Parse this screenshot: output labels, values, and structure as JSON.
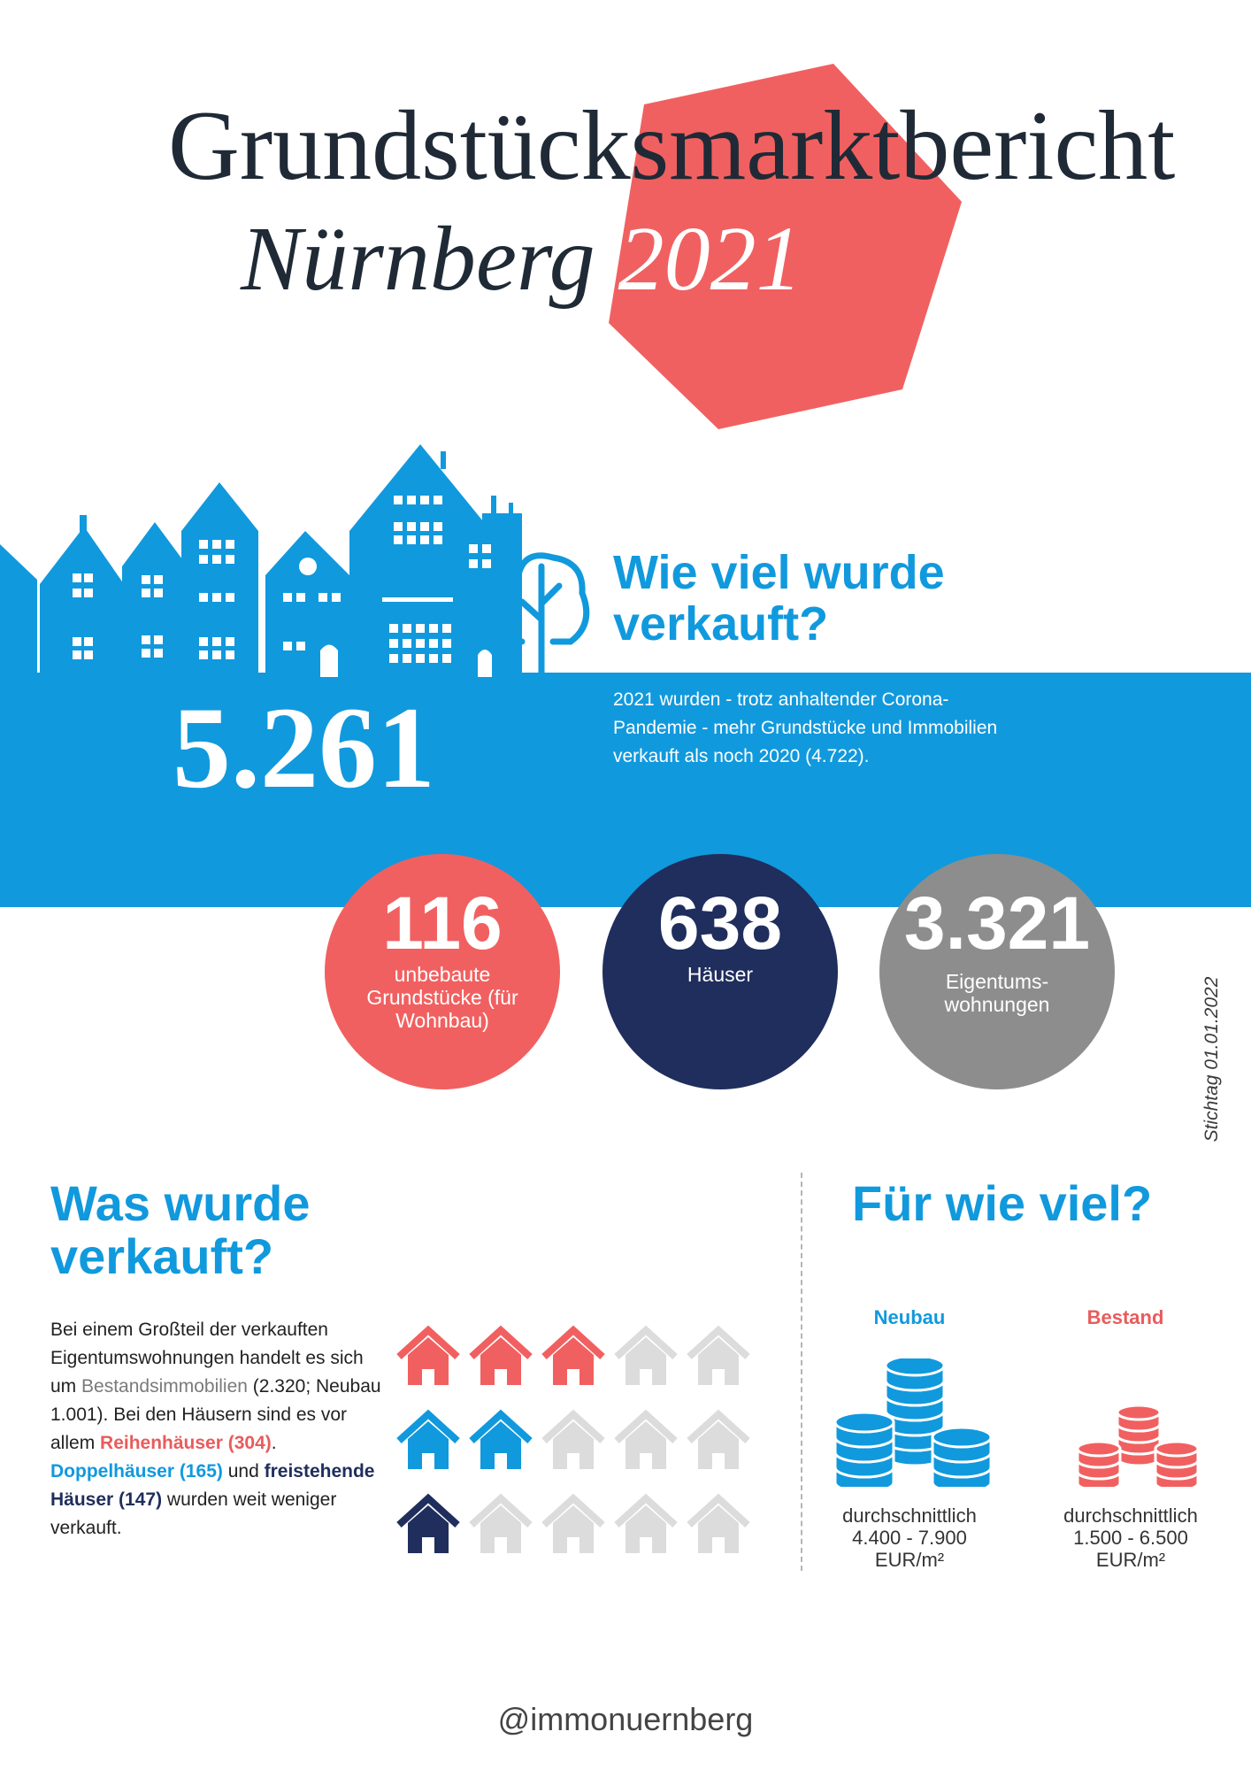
{
  "title": {
    "line1": "Grundstücksmarktbericht",
    "line2_city": "Nürnberg",
    "line2_year": "2021"
  },
  "colors": {
    "blue": "#1199dd",
    "coral": "#f16060",
    "navy": "#1f2e5c",
    "gray": "#8d8d8d",
    "light_gray": "#dcdcdc"
  },
  "sold": {
    "heading": "Wie viel wurde verkauft?",
    "total": "5.261",
    "text": "2021 wurden - trotz anhaltender Corona-Pandemie - mehr Grundstücke und Immobilien verkauft als noch 2020 (4.722)."
  },
  "circles": [
    {
      "number": "116",
      "label": "unbebaute Grundstücke (für Wohnbau)",
      "color": "#f16060"
    },
    {
      "number": "638",
      "label": "Häuser",
      "color": "#1f2e5c"
    },
    {
      "number": "3.321",
      "label": "Eigentums-wohnungen",
      "color": "#8d8d8d"
    }
  ],
  "stichtag": "Stichtag 01.01.2022",
  "what": {
    "heading": "Was wurde verkauft?",
    "p1": "Bei einem Großteil der verkauften Eigentumswohnungen handelt es sich um ",
    "bestand_word": "Bestandsimmobilien",
    "p2": " (2.320; Neubau 1.001). Bei den Häusern sind es vor allem ",
    "reihen": "Reihenhäuser (304)",
    "p3": ". ",
    "doppel": "Doppelhäuser (165)",
    "p4": " und ",
    "frei": "freistehende Häuser (147)",
    "p5": " wurden weit weniger verkauft.",
    "house_rows": [
      {
        "filled": 3,
        "total": 5,
        "icon": "house-icon",
        "color": "#f16060"
      },
      {
        "filled": 2,
        "total": 5,
        "icon": "house-icon",
        "color": "#1199dd"
      },
      {
        "filled": 1,
        "total": 5,
        "icon": "house-icon",
        "color": "#1f2e5c"
      }
    ]
  },
  "prices": {
    "heading": "Für wie viel?",
    "neubau": {
      "label": "Neubau",
      "line1": "durchschnittlich",
      "line2": "4.400 - 7.900",
      "line3": "EUR/m²",
      "icon": "coin-stack-icon"
    },
    "bestand": {
      "label": "Bestand",
      "line1": "durchschnittlich",
      "line2": "1.500 - 6.500",
      "line3": "EUR/m²",
      "icon": "coin-stack-icon"
    }
  },
  "footer": {
    "handle": "@immonuernberg"
  }
}
